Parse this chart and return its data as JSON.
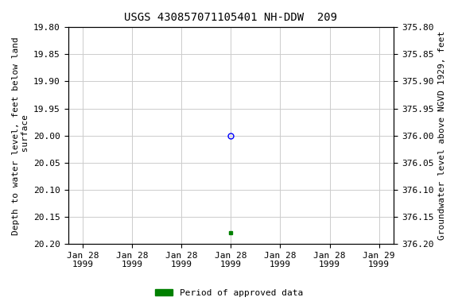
{
  "title": "USGS 430857071105401 NH-DDW  209",
  "ylabel_left": "Depth to water level, feet below land\n surface",
  "ylabel_right": "Groundwater level above NGVD 1929, feet",
  "ylim_left": [
    19.8,
    20.2
  ],
  "ylim_right": [
    375.8,
    376.2
  ],
  "yticks_left": [
    19.8,
    19.85,
    19.9,
    19.95,
    20.0,
    20.05,
    20.1,
    20.15,
    20.2
  ],
  "yticks_right": [
    375.8,
    375.85,
    375.9,
    375.95,
    376.0,
    376.05,
    376.1,
    376.15,
    376.2
  ],
  "point_open_value": 20.0,
  "point_filled_value": 20.18,
  "open_marker_color": "blue",
  "filled_marker_color": "#008000",
  "grid_color": "#cccccc",
  "background_color": "white",
  "legend_label": "Period of approved data",
  "legend_color": "#008000",
  "title_fontsize": 10,
  "axis_fontsize": 8,
  "tick_fontsize": 8
}
